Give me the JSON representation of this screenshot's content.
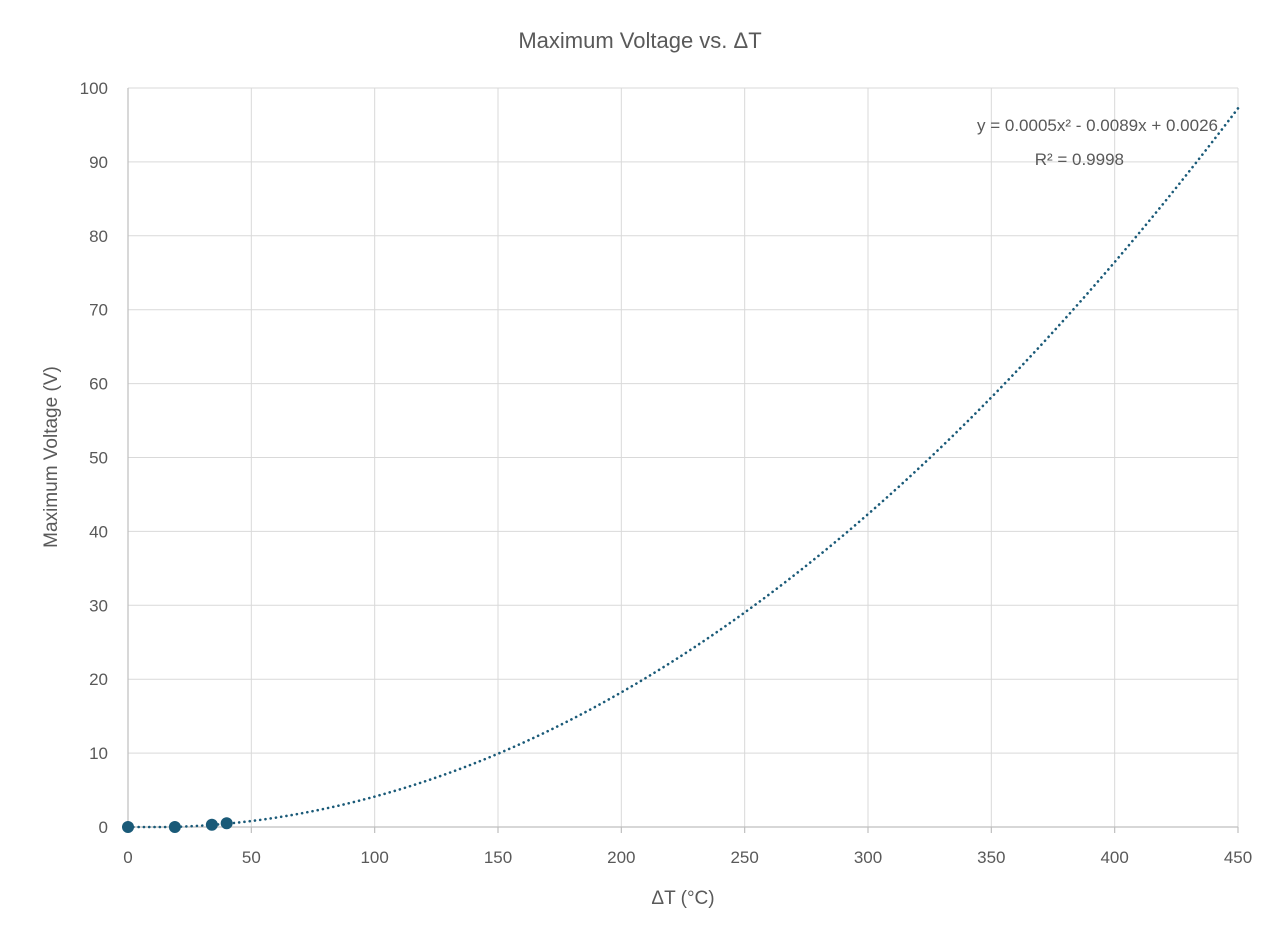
{
  "chart_data": {
    "type": "scatter",
    "title": "Maximum Voltage vs. ΔT",
    "xlabel": "ΔT (°C)",
    "ylabel": "Maximum Voltage (V)",
    "xlim": [
      0,
      450
    ],
    "ylim": [
      0,
      100
    ],
    "x_ticks": [
      "0",
      "50",
      "100",
      "150",
      "200",
      "250",
      "300",
      "350",
      "400",
      "450"
    ],
    "y_ticks": [
      "0",
      "10",
      "20",
      "30",
      "40",
      "50",
      "60",
      "70",
      "80",
      "90",
      "100"
    ],
    "grid": true,
    "legend": "none",
    "marker_color": "#1a5a78",
    "points": [
      {
        "x": 0,
        "y": 0
      },
      {
        "x": 19,
        "y": 0
      },
      {
        "x": 34,
        "y": 0.3
      },
      {
        "x": 40,
        "y": 0.5
      }
    ],
    "trendline": {
      "type": "polynomial",
      "order": 2,
      "coefficients": [
        0.0005,
        -0.0089,
        0.0026
      ],
      "x_range": [
        0,
        450
      ],
      "style": "dotted",
      "color": "#1a5a78",
      "equation_label": "y = 0.0005x² - 0.0089x + 0.0026",
      "r2_label": "R² = 0.9998"
    }
  }
}
